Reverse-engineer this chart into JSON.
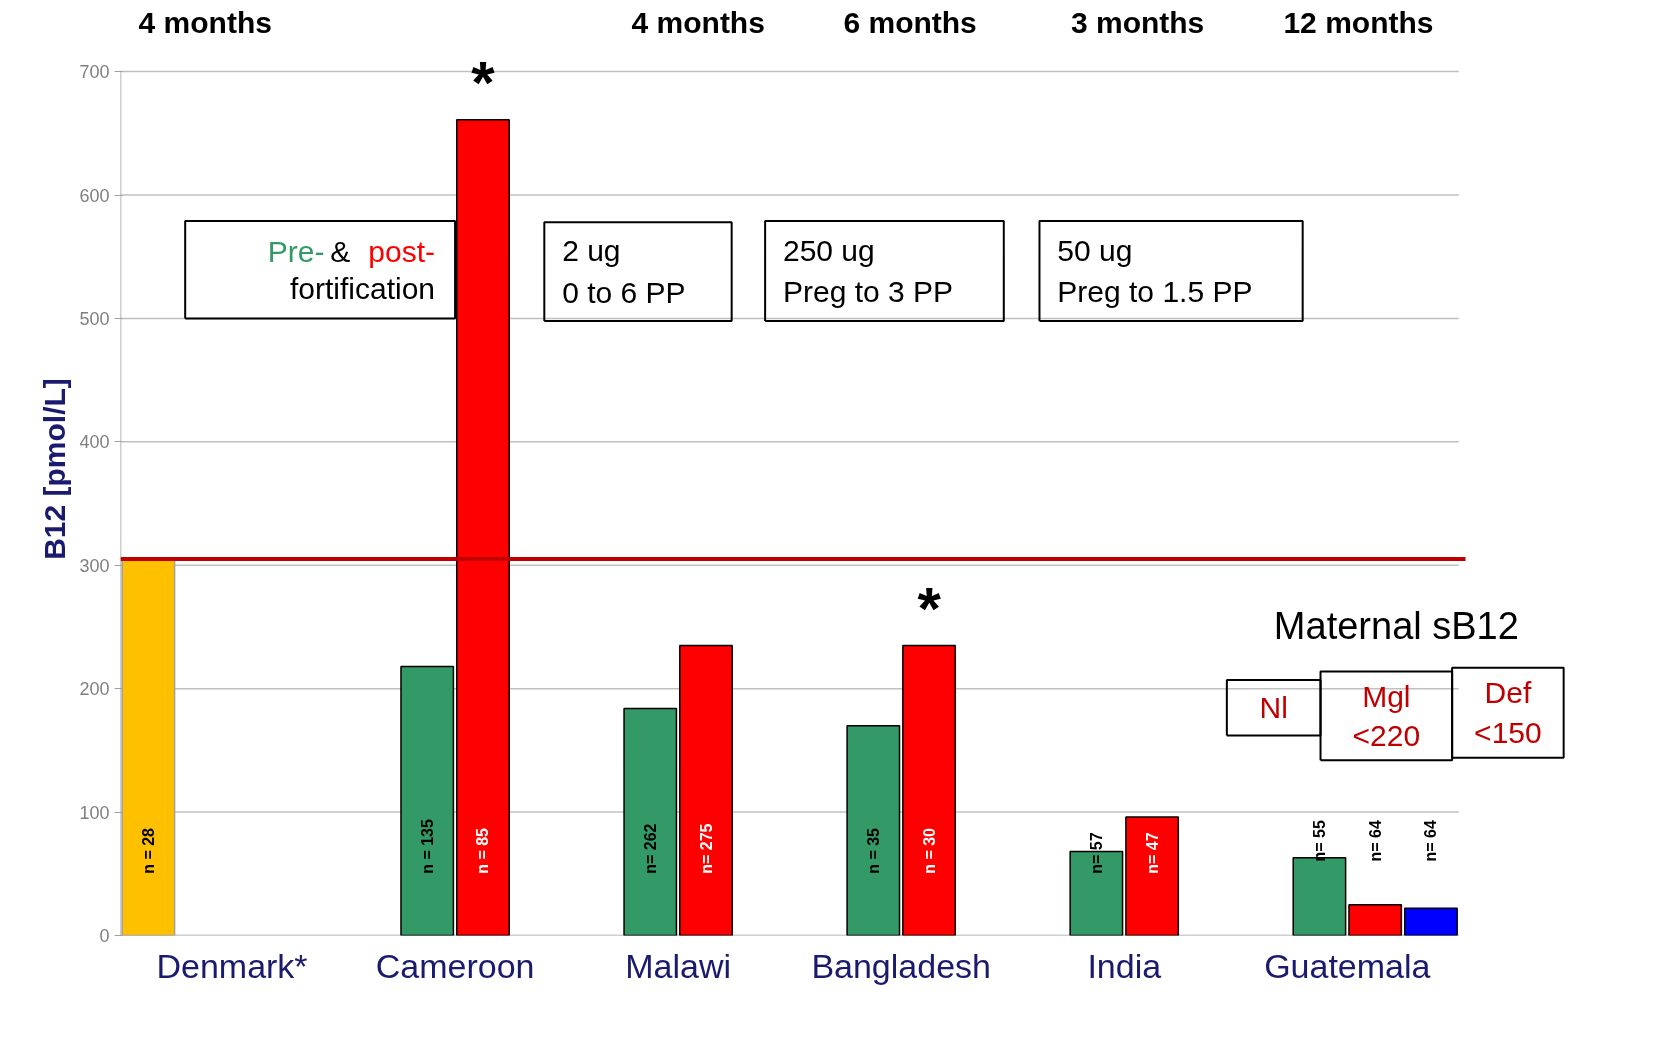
{
  "chart_data": {
    "type": "bar",
    "ylabel": "B12 [pmol/L]",
    "categories": [
      "Denmark*",
      "Cameroon",
      "Malawi",
      "Bangladesh",
      "India",
      "Guatemala"
    ],
    "series": [
      {
        "color": "#ffc000",
        "values": [
          305,
          null,
          null,
          null,
          null,
          null
        ]
      },
      {
        "color": "#339966",
        "values": [
          null,
          218,
          184,
          170,
          68,
          63
        ]
      },
      {
        "color": "#ff0000",
        "values": [
          null,
          661,
          235,
          235,
          96,
          25
        ]
      },
      {
        "color": "#0000ff",
        "values": [
          null,
          null,
          null,
          null,
          null,
          22
        ]
      }
    ],
    "ylim": [
      0,
      700
    ],
    "yticks": [
      0,
      100,
      200,
      300,
      400,
      500,
      600,
      700
    ],
    "grid": "y",
    "ref_lines": [
      {
        "axis": "y",
        "value": 305,
        "color": "#c00000"
      }
    ],
    "annotations": [
      "4 months",
      "4 months",
      "6 months",
      "3 months",
      "12 months",
      "Pre- & post-fortification",
      "2 ug\n0 to 6 PP",
      "250 ug\nPreg to 3 PP",
      "50 ug\nPreg to 1.5 PP",
      "Maternal sB12",
      "Nl",
      "Mgl\n<220",
      "Def\n<150",
      "n = 28",
      "n = 135",
      "n = 85",
      "n= 262",
      "n= 275",
      "n = 35",
      "n = 30",
      "n= 57",
      "n= 47",
      "n= 55",
      "n= 64",
      "n= 64",
      {
        "text": "*",
        "x": "Cameroon",
        "y": 661
      },
      {
        "text": "*",
        "x": "Bangladesh",
        "y": 235
      }
    ]
  }
}
